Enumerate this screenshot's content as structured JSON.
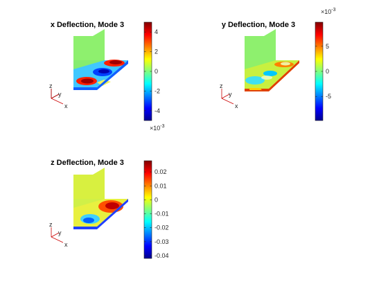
{
  "chart_data": [
    {
      "type": "heatmap",
      "title": "x Deflection, Mode 3",
      "colorbar": {
        "min": -0.005,
        "max": 0.005,
        "ticks": [
          "-4",
          "-2",
          "0",
          "2",
          "4"
        ],
        "tick_values": [
          -4,
          -2,
          0,
          2,
          4
        ],
        "exponent": "×10",
        "exponent_power": "-3",
        "exponent_position": "bottom"
      },
      "triad": {
        "z": "z",
        "y": "y",
        "x": "x"
      },
      "colormap": "jet"
    },
    {
      "type": "heatmap",
      "title": "y Deflection, Mode 3",
      "colorbar": {
        "min": -0.0098,
        "max": 0.0098,
        "ticks": [
          "-5",
          "0",
          "5"
        ],
        "tick_values": [
          -5,
          0,
          5
        ],
        "exponent": "×10",
        "exponent_power": "-3",
        "exponent_position": "top"
      },
      "triad": {
        "z": "z",
        "y": "y",
        "x": "x"
      },
      "colormap": "jet"
    },
    {
      "type": "heatmap",
      "title": "z Deflection, Mode 3",
      "colorbar": {
        "min": -0.042,
        "max": 0.028,
        "ticks": [
          "0.02",
          "0.01",
          "0",
          "-0.01",
          "-0.02",
          "-0.03",
          "-0.04"
        ],
        "tick_values": [
          0.02,
          0.01,
          0,
          -0.01,
          -0.02,
          -0.03,
          -0.04
        ],
        "exponent": "",
        "exponent_power": "",
        "exponent_position": "none"
      },
      "triad": {
        "z": "z",
        "y": "y",
        "x": "x"
      },
      "colormap": "jet"
    }
  ]
}
